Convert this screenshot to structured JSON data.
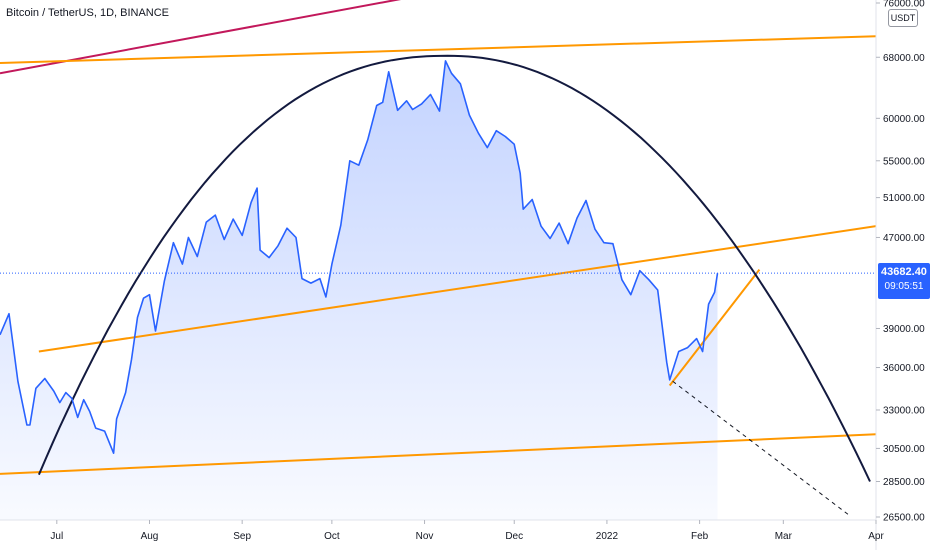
{
  "header": {
    "title": "Bitcoin / TetherUS, 1D, BINANCE",
    "currency": "USDT"
  },
  "price_tag": {
    "price": "43682.40",
    "countdown": "09:05:51"
  },
  "colors": {
    "price_line": "#2962ff",
    "area_fill": "#2962ff",
    "trend_orange": "#ff9800",
    "trend_red": "#c2185b",
    "arc": "#131a3f",
    "dashed": "#131722",
    "last_price_line": "#2962ff"
  },
  "chart_data": {
    "type": "area",
    "y_scale": "log",
    "ylim": [
      26500,
      76000
    ],
    "y_ticks": [
      "76000.00",
      "68000.00",
      "60000.00",
      "55000.00",
      "51000.00",
      "47000.00",
      "39000.00",
      "36000.00",
      "33000.00",
      "30500.00",
      "28500.00",
      "26500.00"
    ],
    "y_tick_values": [
      76000,
      68000,
      60000,
      55000,
      51000,
      47000,
      39000,
      36000,
      33000,
      30500,
      28500,
      26500
    ],
    "x_ticks": [
      "Jul",
      "Aug",
      "Sep",
      "Oct",
      "Nov",
      "Dec",
      "2022",
      "Feb",
      "Mar",
      "Apr"
    ],
    "x_tick_dates": [
      "2021-07-01",
      "2021-08-01",
      "2021-09-01",
      "2021-10-01",
      "2021-11-01",
      "2021-12-01",
      "2022-01-01",
      "2022-02-01",
      "2022-03-01",
      "2022-04-01"
    ],
    "xlim": [
      "2021-06-12",
      "2022-04-01"
    ],
    "last_price": 43682.4,
    "series": [
      {
        "x": [
          "2021-06-12",
          "2021-06-15",
          "2021-06-18",
          "2021-06-21",
          "2021-06-22",
          "2021-06-24",
          "2021-06-27",
          "2021-06-30",
          "2021-07-02",
          "2021-07-04",
          "2021-07-06",
          "2021-07-08",
          "2021-07-10",
          "2021-07-12",
          "2021-07-14",
          "2021-07-17",
          "2021-07-20",
          "2021-07-21",
          "2021-07-24",
          "2021-07-26",
          "2021-07-28",
          "2021-07-30",
          "2021-08-01",
          "2021-08-03",
          "2021-08-06",
          "2021-08-09",
          "2021-08-12",
          "2021-08-14",
          "2021-08-17",
          "2021-08-20",
          "2021-08-23",
          "2021-08-26",
          "2021-08-29",
          "2021-09-01",
          "2021-09-04",
          "2021-09-06",
          "2021-09-07",
          "2021-09-10",
          "2021-09-13",
          "2021-09-16",
          "2021-09-19",
          "2021-09-21",
          "2021-09-24",
          "2021-09-27",
          "2021-09-29",
          "2021-10-01",
          "2021-10-04",
          "2021-10-07",
          "2021-10-10",
          "2021-10-13",
          "2021-10-16",
          "2021-10-18",
          "2021-10-20",
          "2021-10-23",
          "2021-10-26",
          "2021-10-28",
          "2021-10-31",
          "2021-11-03",
          "2021-11-06",
          "2021-11-08",
          "2021-11-10",
          "2021-11-13",
          "2021-11-16",
          "2021-11-19",
          "2021-11-22",
          "2021-11-25",
          "2021-11-28",
          "2021-12-01",
          "2021-12-03",
          "2021-12-04",
          "2021-12-07",
          "2021-12-10",
          "2021-12-13",
          "2021-12-16",
          "2021-12-19",
          "2021-12-22",
          "2021-12-25",
          "2021-12-28",
          "2021-12-31",
          "2022-01-03",
          "2022-01-06",
          "2022-01-09",
          "2022-01-12",
          "2022-01-15",
          "2022-01-18",
          "2022-01-21",
          "2022-01-22",
          "2022-01-25",
          "2022-01-28",
          "2022-01-31",
          "2022-02-02",
          "2022-02-04",
          "2022-02-06",
          "2022-02-07"
        ],
        "values": [
          38500,
          40200,
          35000,
          32000,
          32000,
          34500,
          35200,
          34300,
          33500,
          34200,
          33800,
          32500,
          33700,
          32900,
          31800,
          31600,
          30200,
          32400,
          34200,
          36600,
          39900,
          41500,
          41800,
          38800,
          43000,
          46500,
          44500,
          47000,
          45200,
          48500,
          49200,
          46800,
          48800,
          47200,
          50500,
          52000,
          45800,
          45100,
          46200,
          47900,
          47000,
          43200,
          42800,
          43200,
          41600,
          44500,
          48200,
          55000,
          54500,
          57400,
          61600,
          62000,
          66000,
          61000,
          62200,
          61100,
          61800,
          63000,
          60900,
          67500,
          65800,
          64400,
          60400,
          58200,
          56500,
          58500,
          57800,
          56900,
          53600,
          49800,
          50800,
          48100,
          46900,
          48400,
          46400,
          48900,
          50700,
          47800,
          46500,
          46400,
          43100,
          41800,
          43900,
          43100,
          42200,
          36400,
          35100,
          37200,
          37500,
          38200,
          37200,
          41000,
          42000,
          43682
        ]
      }
    ],
    "annotations": {
      "trendlines": [
        {
          "name": "red-upper-trend",
          "from": [
            "2021-06-12",
            65800
          ],
          "to": [
            "2021-11-20",
            79000
          ]
        },
        {
          "name": "orange-upper-channel",
          "from": [
            "2021-06-12",
            67200
          ],
          "to": [
            "2022-04-01",
            71000
          ]
        },
        {
          "name": "orange-mid-channel",
          "from": [
            "2021-06-25",
            37200
          ],
          "to": [
            "2022-04-01",
            48100
          ]
        },
        {
          "name": "orange-lower-channel",
          "from": [
            "2021-06-12",
            28950
          ],
          "to": [
            "2022-04-01",
            31400
          ]
        },
        {
          "name": "orange-short-rising",
          "from": [
            "2022-01-22",
            34700
          ],
          "to": [
            "2022-02-21",
            44000
          ]
        },
        {
          "name": "dashed-projection",
          "from": [
            "2022-01-23",
            35000
          ],
          "to": [
            "2022-03-23",
            26600
          ]
        }
      ],
      "arc": {
        "name": "parabolic-arc",
        "start": [
          "2021-06-25",
          28900
        ],
        "peak": [
          "2021-11-09",
          68200
        ],
        "end": [
          "2022-03-30",
          28500
        ]
      }
    }
  }
}
